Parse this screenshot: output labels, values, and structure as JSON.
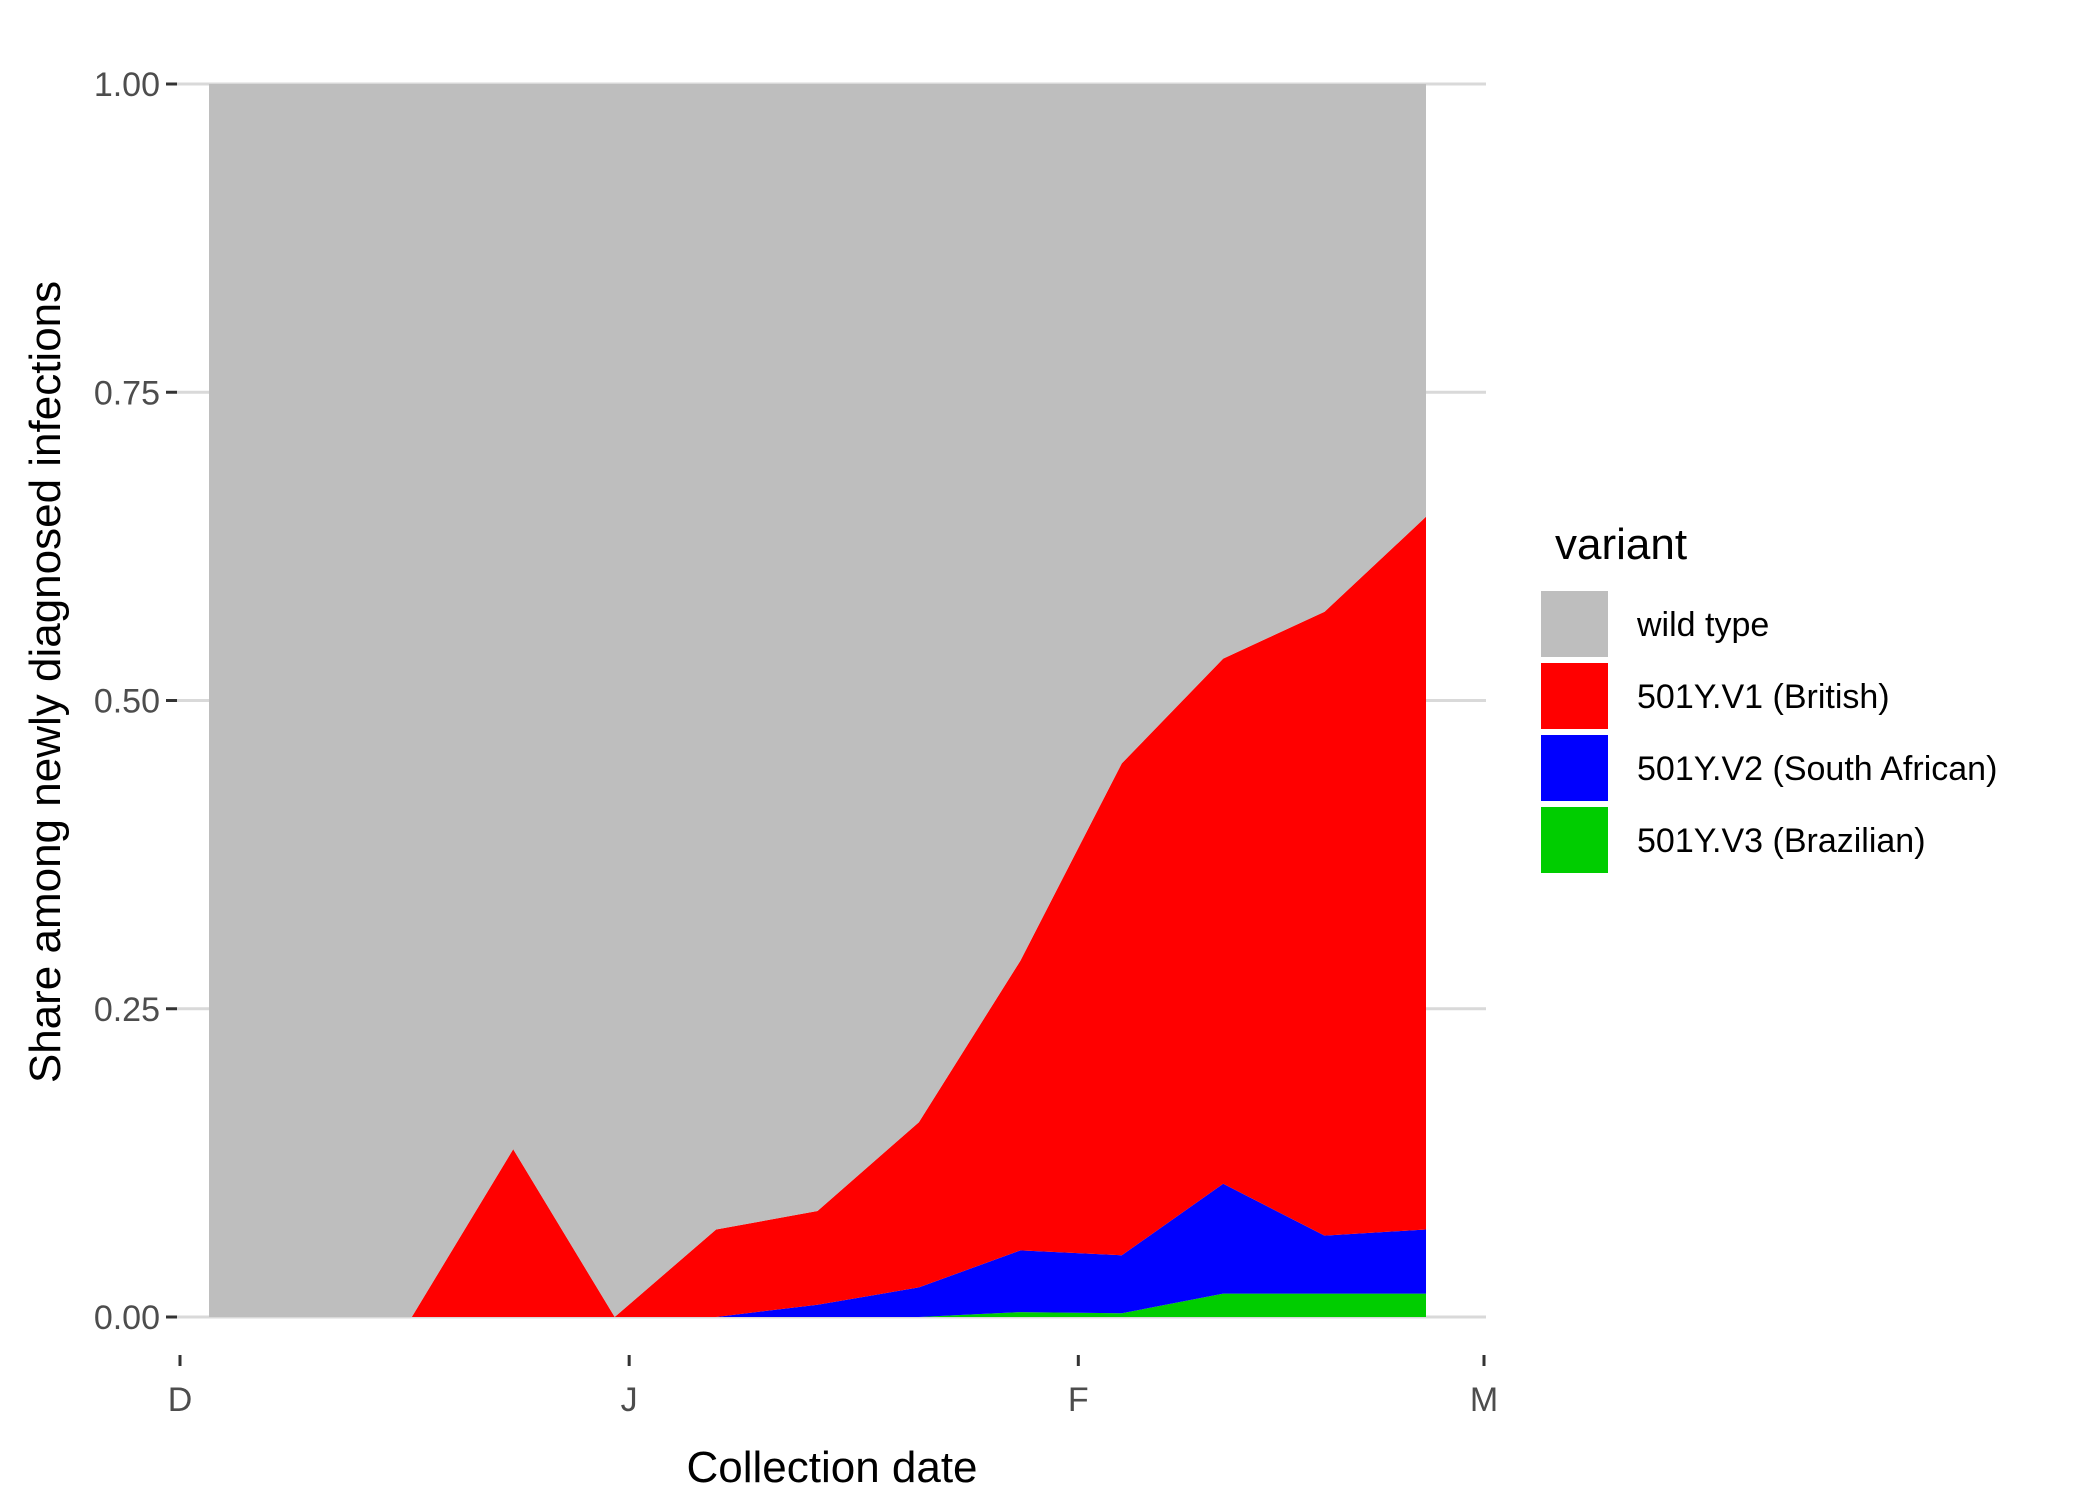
{
  "chart_data": {
    "type": "area",
    "stacked": true,
    "normalized": true,
    "xlabel": "Collection date",
    "ylabel": "Share among newly diagnosed infections",
    "ylim": [
      0,
      1
    ],
    "y_ticks": [
      "0.00",
      "0.25",
      "0.50",
      "0.75",
      "1.00"
    ],
    "x_ticks": [
      {
        "label": "D",
        "date": "2020-12-01"
      },
      {
        "label": "J",
        "date": "2021-01-01"
      },
      {
        "label": "F",
        "date": "2021-02-01"
      },
      {
        "label": "M",
        "date": "2021-03-01"
      }
    ],
    "x_range": [
      "2020-12-01",
      "2021-03-01"
    ],
    "grid": "horizontal",
    "legend_position": "right",
    "legend_title": "variant",
    "x": [
      "2020-12-03",
      "2020-12-10",
      "2020-12-17",
      "2020-12-24",
      "2020-12-31",
      "2021-01-07",
      "2021-01-14",
      "2021-01-21",
      "2021-01-28",
      "2021-02-04",
      "2021-02-11",
      "2021-02-18",
      "2021-02-25"
    ],
    "series": [
      {
        "name": "501Y.V3 (Brazilian)",
        "color": "#00CD00",
        "values": [
          0,
          0,
          0,
          0,
          0,
          0,
          0,
          0,
          0.004,
          0.003,
          0.019,
          0.019,
          0.019
        ]
      },
      {
        "name": "501Y.V2 (South African)",
        "color": "#0000FF",
        "values": [
          0,
          0,
          0,
          0,
          0,
          0,
          0.01,
          0.024,
          0.05,
          0.047,
          0.089,
          0.047,
          0.052
        ]
      },
      {
        "name": "501Y.V1 (British)",
        "color": "#FF0000",
        "values": [
          0,
          0,
          0,
          0.136,
          0,
          0.071,
          0.076,
          0.134,
          0.235,
          0.399,
          0.426,
          0.506,
          0.578
        ]
      },
      {
        "name": "wild type",
        "color": "#BEBEBE",
        "values": [
          1,
          1,
          1,
          0.864,
          1,
          0.929,
          0.914,
          0.842,
          0.711,
          0.551,
          0.466,
          0.428,
          0.351
        ]
      }
    ],
    "legend_order": [
      "wild type",
      "501Y.V1 (British)",
      "501Y.V2 (South African)",
      "501Y.V3 (Brazilian)"
    ]
  }
}
